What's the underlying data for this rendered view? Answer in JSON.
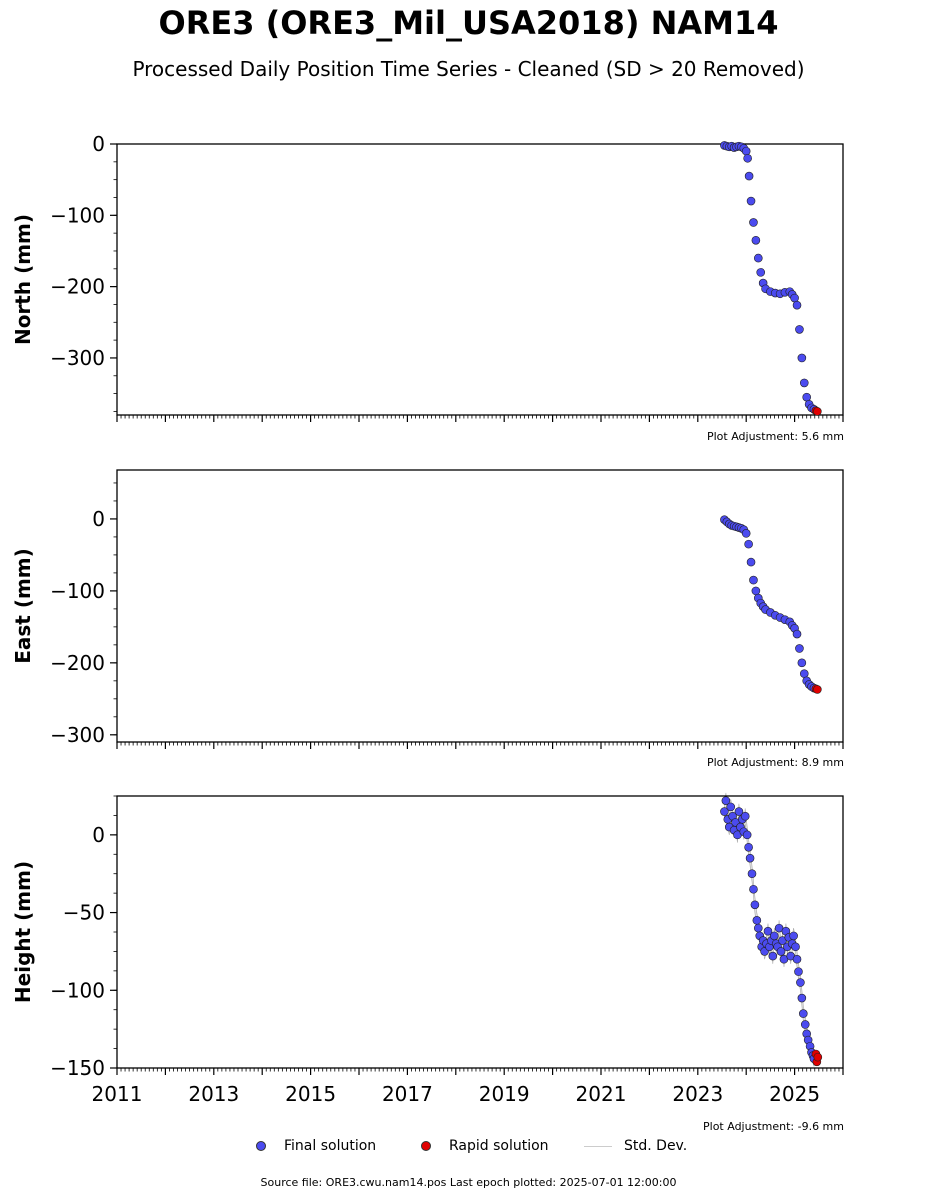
{
  "title": "ORE3 (ORE3_Mil_USA2018) NAM14",
  "subtitle": "Processed Daily Position Time Series - Cleaned (SD > 20 Removed)",
  "footer": "Source file: ORE3.cwu.nam14.pos  Last epoch plotted: 2025-07-01 12:00:00",
  "legend": {
    "final_label": "Final solution",
    "rapid_label": "Rapid solution",
    "std_label": "Std. Dev."
  },
  "colors": {
    "final": "#4b4bef",
    "rapid": "#e00000",
    "std": "#cccccc",
    "marker_edge": "#202020"
  },
  "chart_data": [
    {
      "type": "scatter",
      "panel": "north",
      "ylabel": "North (mm)",
      "adjustment": "Plot Adjustment: 5.6 mm",
      "xlim": [
        2011,
        2026
      ],
      "ylim": [
        -380,
        0
      ],
      "yticks": [
        0,
        -100,
        -200,
        -300
      ],
      "ytick_labels": [
        "0",
        "−100",
        "−200",
        "−300"
      ],
      "std_band": 0,
      "final": {
        "x": [
          2023.55,
          2023.6,
          2023.65,
          2023.7,
          2023.75,
          2023.8,
          2023.85,
          2023.9,
          2023.95,
          2024.0,
          2024.03,
          2024.06,
          2024.1,
          2024.15,
          2024.2,
          2024.25,
          2024.3,
          2024.35,
          2024.4,
          2024.5,
          2024.6,
          2024.7,
          2024.8,
          2024.9,
          2024.95,
          2025.0,
          2025.05,
          2025.1,
          2025.15,
          2025.2,
          2025.25,
          2025.3,
          2025.35,
          2025.4
        ],
        "y": [
          -2,
          -3,
          -4,
          -3,
          -5,
          -4,
          -3,
          -4,
          -6,
          -10,
          -20,
          -45,
          -80,
          -110,
          -135,
          -160,
          -180,
          -195,
          -203,
          -207,
          -209,
          -210,
          -208,
          -207,
          -211,
          -216,
          -226,
          -260,
          -300,
          -335,
          -355,
          -365,
          -370,
          -372
        ]
      },
      "rapid": {
        "x": [
          2025.44,
          2025.47
        ],
        "y": [
          -374,
          -375
        ]
      }
    },
    {
      "type": "scatter",
      "panel": "east",
      "ylabel": "East (mm)",
      "adjustment": "Plot Adjustment: 8.9 mm",
      "xlim": [
        2011,
        2026
      ],
      "ylim": [
        -310,
        68
      ],
      "yticks": [
        0,
        -100,
        -200,
        -300
      ],
      "ytick_labels": [
        "0",
        "−100",
        "−200",
        "−300"
      ],
      "std_band": 0,
      "final": {
        "x": [
          2023.55,
          2023.6,
          2023.65,
          2023.7,
          2023.75,
          2023.8,
          2023.85,
          2023.9,
          2023.95,
          2024.0,
          2024.05,
          2024.1,
          2024.15,
          2024.2,
          2024.25,
          2024.3,
          2024.35,
          2024.4,
          2024.5,
          2024.6,
          2024.7,
          2024.8,
          2024.9,
          2024.95,
          2025.0,
          2025.05,
          2025.1,
          2025.15,
          2025.2,
          2025.25,
          2025.3,
          2025.35,
          2025.4
        ],
        "y": [
          -1,
          -4,
          -7,
          -9,
          -10,
          -11,
          -12,
          -13,
          -15,
          -20,
          -35,
          -60,
          -85,
          -100,
          -110,
          -117,
          -122,
          -126,
          -130,
          -134,
          -137,
          -140,
          -143,
          -148,
          -152,
          -160,
          -180,
          -200,
          -215,
          -225,
          -230,
          -233,
          -235
        ]
      },
      "rapid": {
        "x": [
          2025.44,
          2025.47
        ],
        "y": [
          -236,
          -237
        ]
      }
    },
    {
      "type": "scatter",
      "panel": "height",
      "ylabel": "Height (mm)",
      "adjustment": "Plot Adjustment: -9.6 mm",
      "xlim": [
        2011,
        2026
      ],
      "ylim": [
        -150,
        25
      ],
      "yticks": [
        0,
        -50,
        -100,
        -150
      ],
      "ytick_labels": [
        "0",
        "−50",
        "−100",
        "−150"
      ],
      "xticks": [
        2011,
        2013,
        2015,
        2017,
        2019,
        2021,
        2023,
        2025
      ],
      "std_band": 5,
      "final": {
        "x": [
          2023.55,
          2023.58,
          2023.62,
          2023.65,
          2023.68,
          2023.72,
          2023.75,
          2023.78,
          2023.82,
          2023.85,
          2023.88,
          2023.92,
          2023.95,
          2023.98,
          2024.02,
          2024.05,
          2024.08,
          2024.12,
          2024.15,
          2024.18,
          2024.22,
          2024.25,
          2024.28,
          2024.32,
          2024.35,
          2024.38,
          2024.42,
          2024.45,
          2024.48,
          2024.52,
          2024.55,
          2024.58,
          2024.62,
          2024.65,
          2024.68,
          2024.72,
          2024.75,
          2024.78,
          2024.82,
          2024.85,
          2024.88,
          2024.92,
          2024.95,
          2024.98,
          2025.02,
          2025.05,
          2025.08,
          2025.12,
          2025.15,
          2025.18,
          2025.22,
          2025.25,
          2025.28,
          2025.32,
          2025.35,
          2025.38,
          2025.4
        ],
        "y": [
          15,
          22,
          10,
          5,
          18,
          12,
          3,
          8,
          0,
          15,
          5,
          10,
          2,
          12,
          0,
          -8,
          -15,
          -25,
          -35,
          -45,
          -55,
          -60,
          -65,
          -72,
          -68,
          -75,
          -70,
          -62,
          -72,
          -68,
          -78,
          -65,
          -70,
          -72,
          -60,
          -75,
          -68,
          -80,
          -62,
          -72,
          -66,
          -78,
          -70,
          -65,
          -72,
          -80,
          -88,
          -95,
          -105,
          -115,
          -122,
          -128,
          -132,
          -136,
          -140,
          -142,
          -144
        ]
      },
      "rapid": {
        "x": [
          2025.44,
          2025.46,
          2025.48
        ],
        "y": [
          -141,
          -146,
          -143
        ]
      }
    }
  ]
}
